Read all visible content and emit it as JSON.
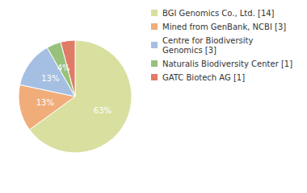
{
  "chart_data": {
    "type": "pie",
    "categories": [
      "BGI Genomics Co., Ltd. [14]",
      "Mined from GenBank, NCBI [3]",
      "Centre for Biodiversity Genomics [3]",
      "Naturalis Biodiversity Center [1]",
      "GATC Biotech AG [1]"
    ],
    "values": [
      63,
      13,
      13,
      4,
      4
    ],
    "value_labels": [
      "63%",
      "13%",
      "13%",
      "4%",
      "4%"
    ],
    "colors": [
      "#d9df9e",
      "#f0ad7a",
      "#a4bfe2",
      "#98c27c",
      "#e07b65"
    ],
    "data_labels": true,
    "legend": "top-right"
  }
}
